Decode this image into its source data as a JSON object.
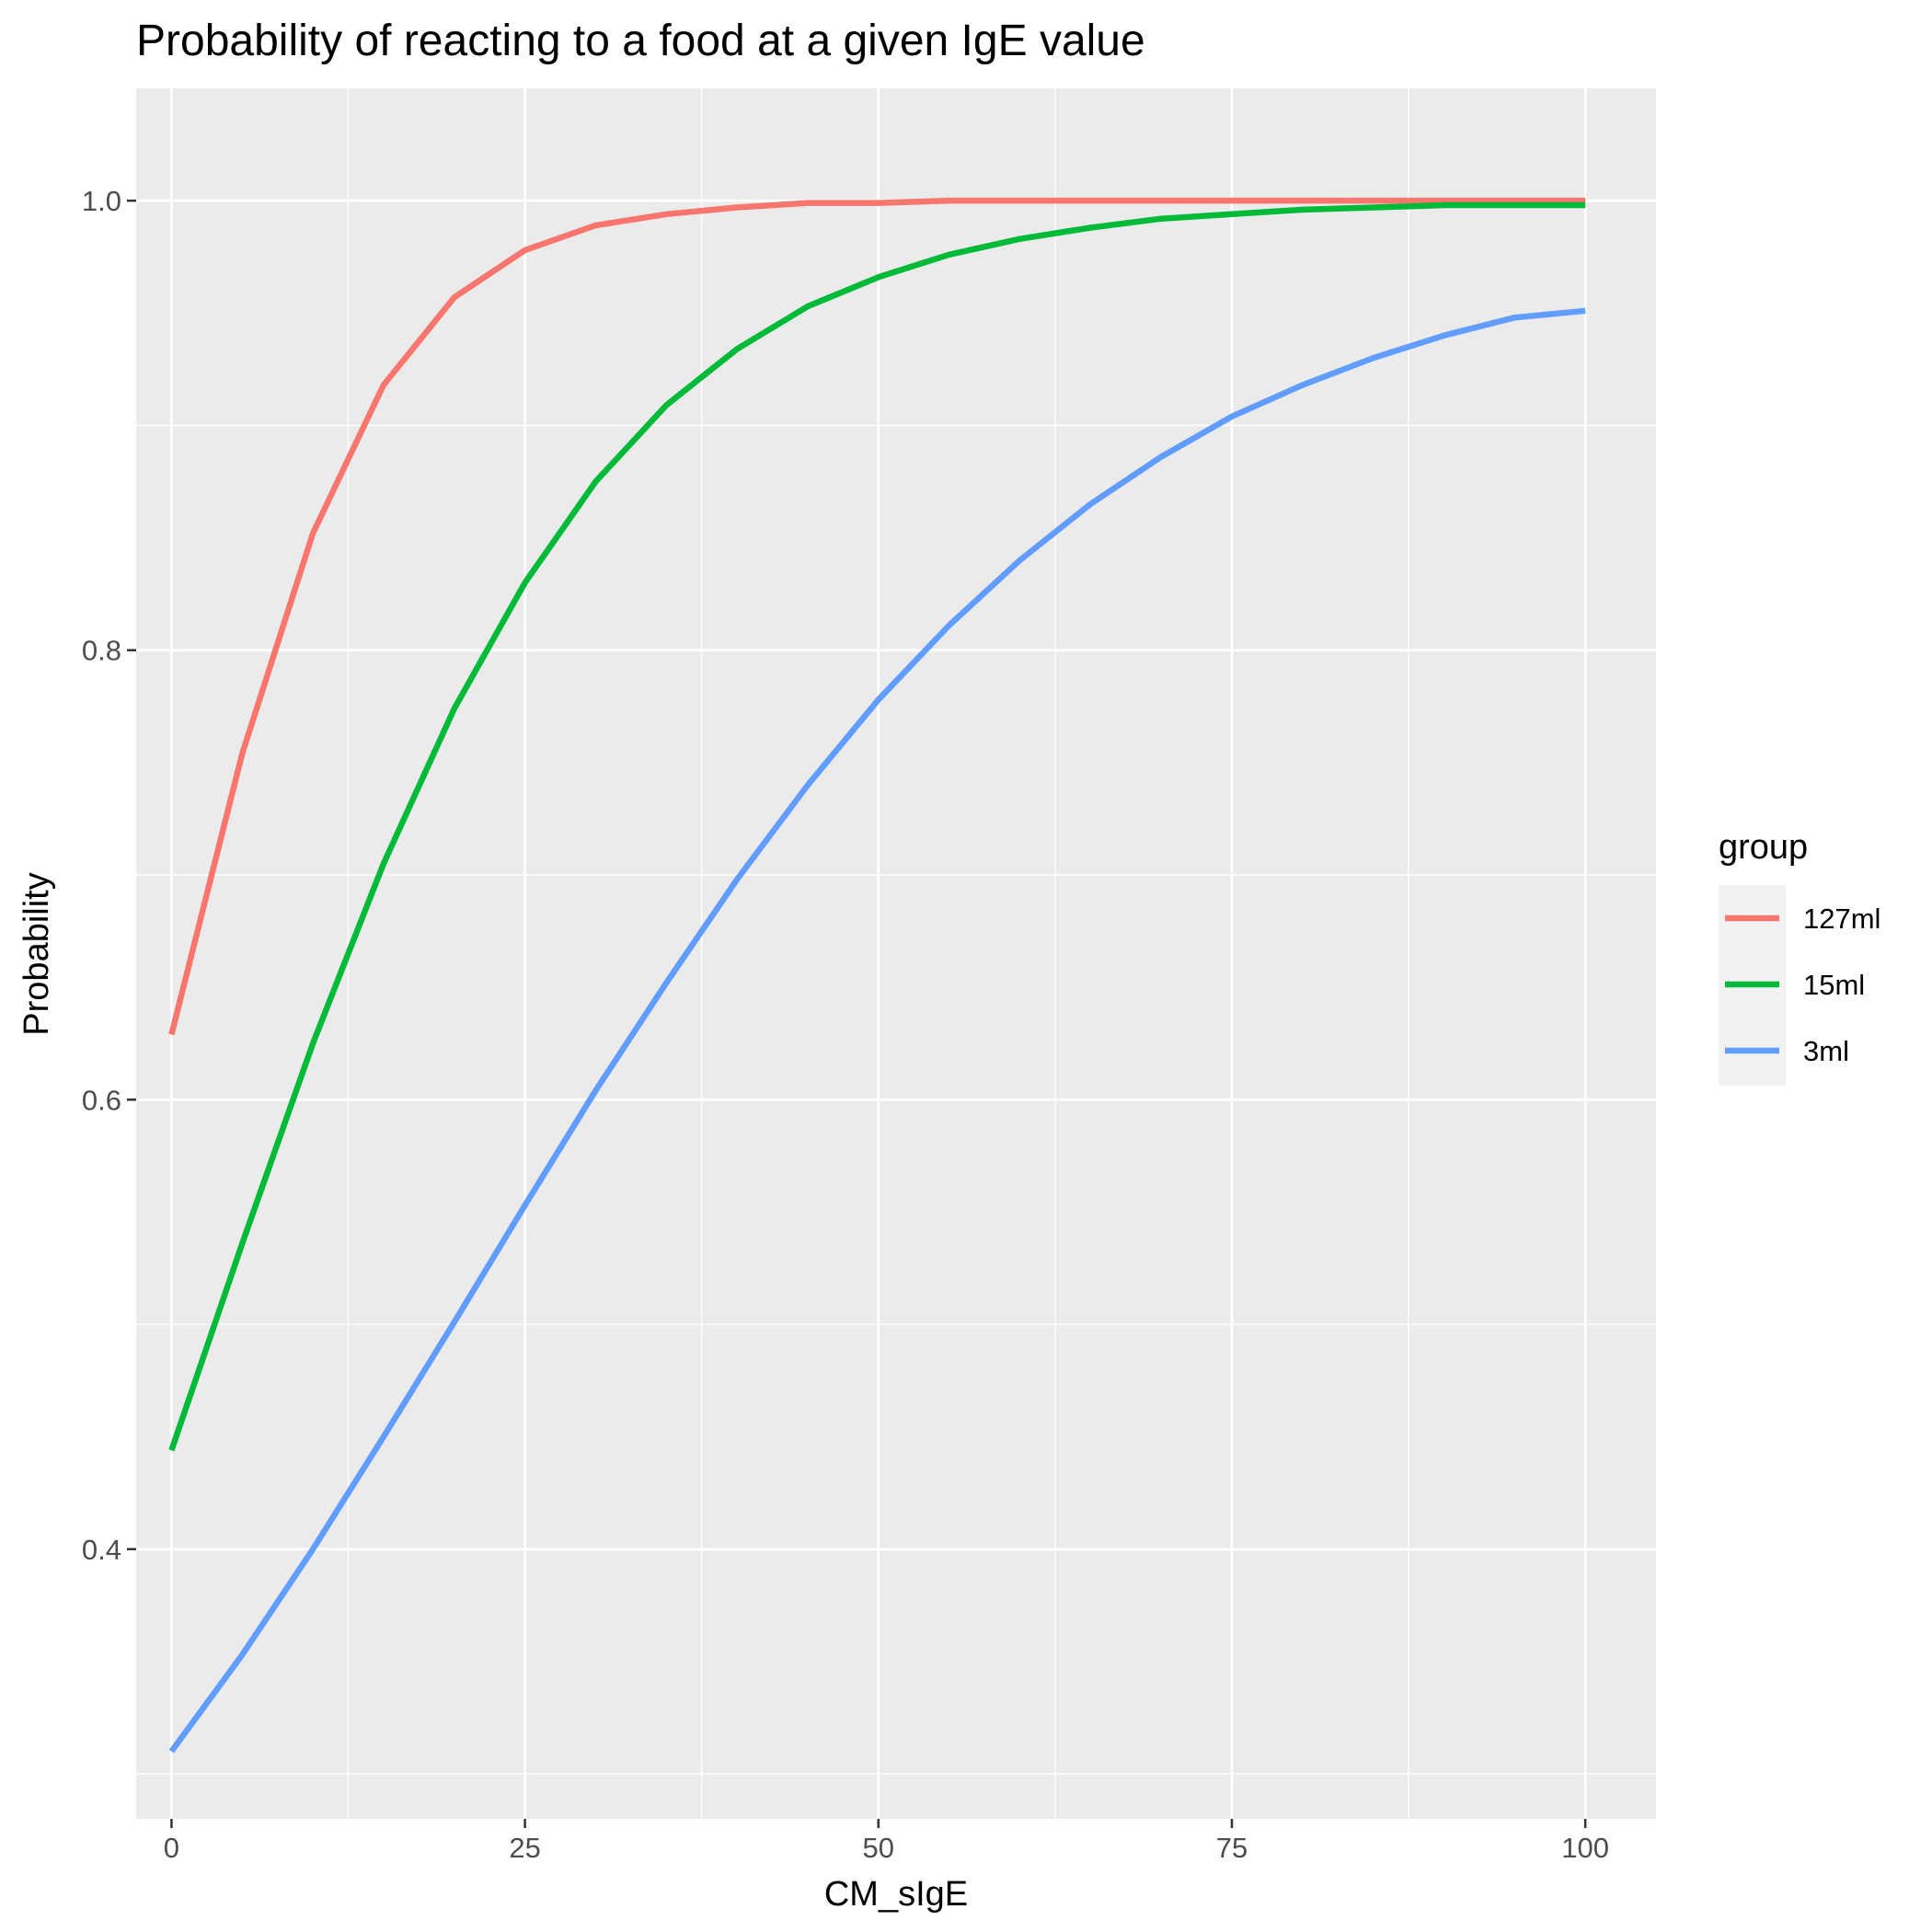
{
  "chart_data": {
    "type": "line",
    "title": "Probability of reacting to a food at a given IgE value",
    "xlabel": "CM_sIgE",
    "ylabel": "Probability",
    "xlim": [
      -2.5,
      105
    ],
    "ylim": [
      0.28,
      1.05
    ],
    "x_ticks": [
      0,
      25,
      50,
      75,
      100
    ],
    "x_tick_labels": [
      "0",
      "25",
      "50",
      "75",
      "100"
    ],
    "y_ticks": [
      0.4,
      0.6,
      0.8,
      1.0
    ],
    "y_tick_labels": [
      "0.4",
      "0.6",
      "0.8",
      "1.0"
    ],
    "grid": true,
    "legend": {
      "title": "group",
      "position": "right"
    },
    "x": [
      0,
      5,
      10,
      15,
      20,
      25,
      30,
      35,
      40,
      45,
      50,
      55,
      60,
      65,
      70,
      75,
      80,
      85,
      90,
      95,
      100
    ],
    "series": [
      {
        "name": "127ml",
        "color": "#F8766D",
        "values": [
          0.629,
          0.754,
          0.852,
          0.918,
          0.957,
          0.978,
          0.989,
          0.994,
          0.997,
          0.999,
          0.999,
          1.0,
          1.0,
          1.0,
          1.0,
          1.0,
          1.0,
          1.0,
          1.0,
          1.0,
          1.0
        ]
      },
      {
        "name": "15ml",
        "color": "#00BA38",
        "values": [
          0.444,
          0.536,
          0.625,
          0.705,
          0.774,
          0.83,
          0.875,
          0.909,
          0.934,
          0.953,
          0.966,
          0.976,
          0.983,
          0.988,
          0.992,
          0.994,
          0.996,
          0.997,
          0.998,
          0.998,
          0.998
        ]
      },
      {
        "name": "3ml",
        "color": "#619CFF",
        "values": [
          0.31,
          0.353,
          0.4,
          0.45,
          0.501,
          0.553,
          0.604,
          0.652,
          0.698,
          0.74,
          0.778,
          0.811,
          0.84,
          0.865,
          0.886,
          0.904,
          0.918,
          0.93,
          0.94,
          0.948,
          0.951
        ]
      }
    ]
  }
}
